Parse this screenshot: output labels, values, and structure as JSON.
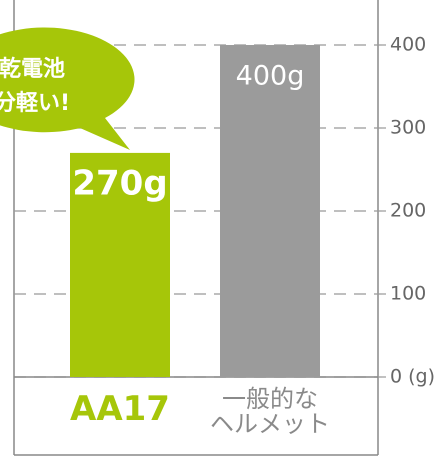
{
  "chart_data": {
    "type": "bar",
    "categories": [
      "AA17",
      "一般的な\nヘルメット"
    ],
    "values": [
      270,
      400
    ],
    "value_labels": [
      "270g",
      "400g"
    ],
    "colors": [
      "#a6c609",
      "#9b9b9b"
    ],
    "ylim": [
      0,
      400
    ],
    "yticks": [
      {
        "value": 0,
        "label": "0 (g)"
      },
      100,
      200,
      300,
      400
    ],
    "grid": true,
    "annotation": [
      "乾電池",
      "分軽い!"
    ]
  }
}
